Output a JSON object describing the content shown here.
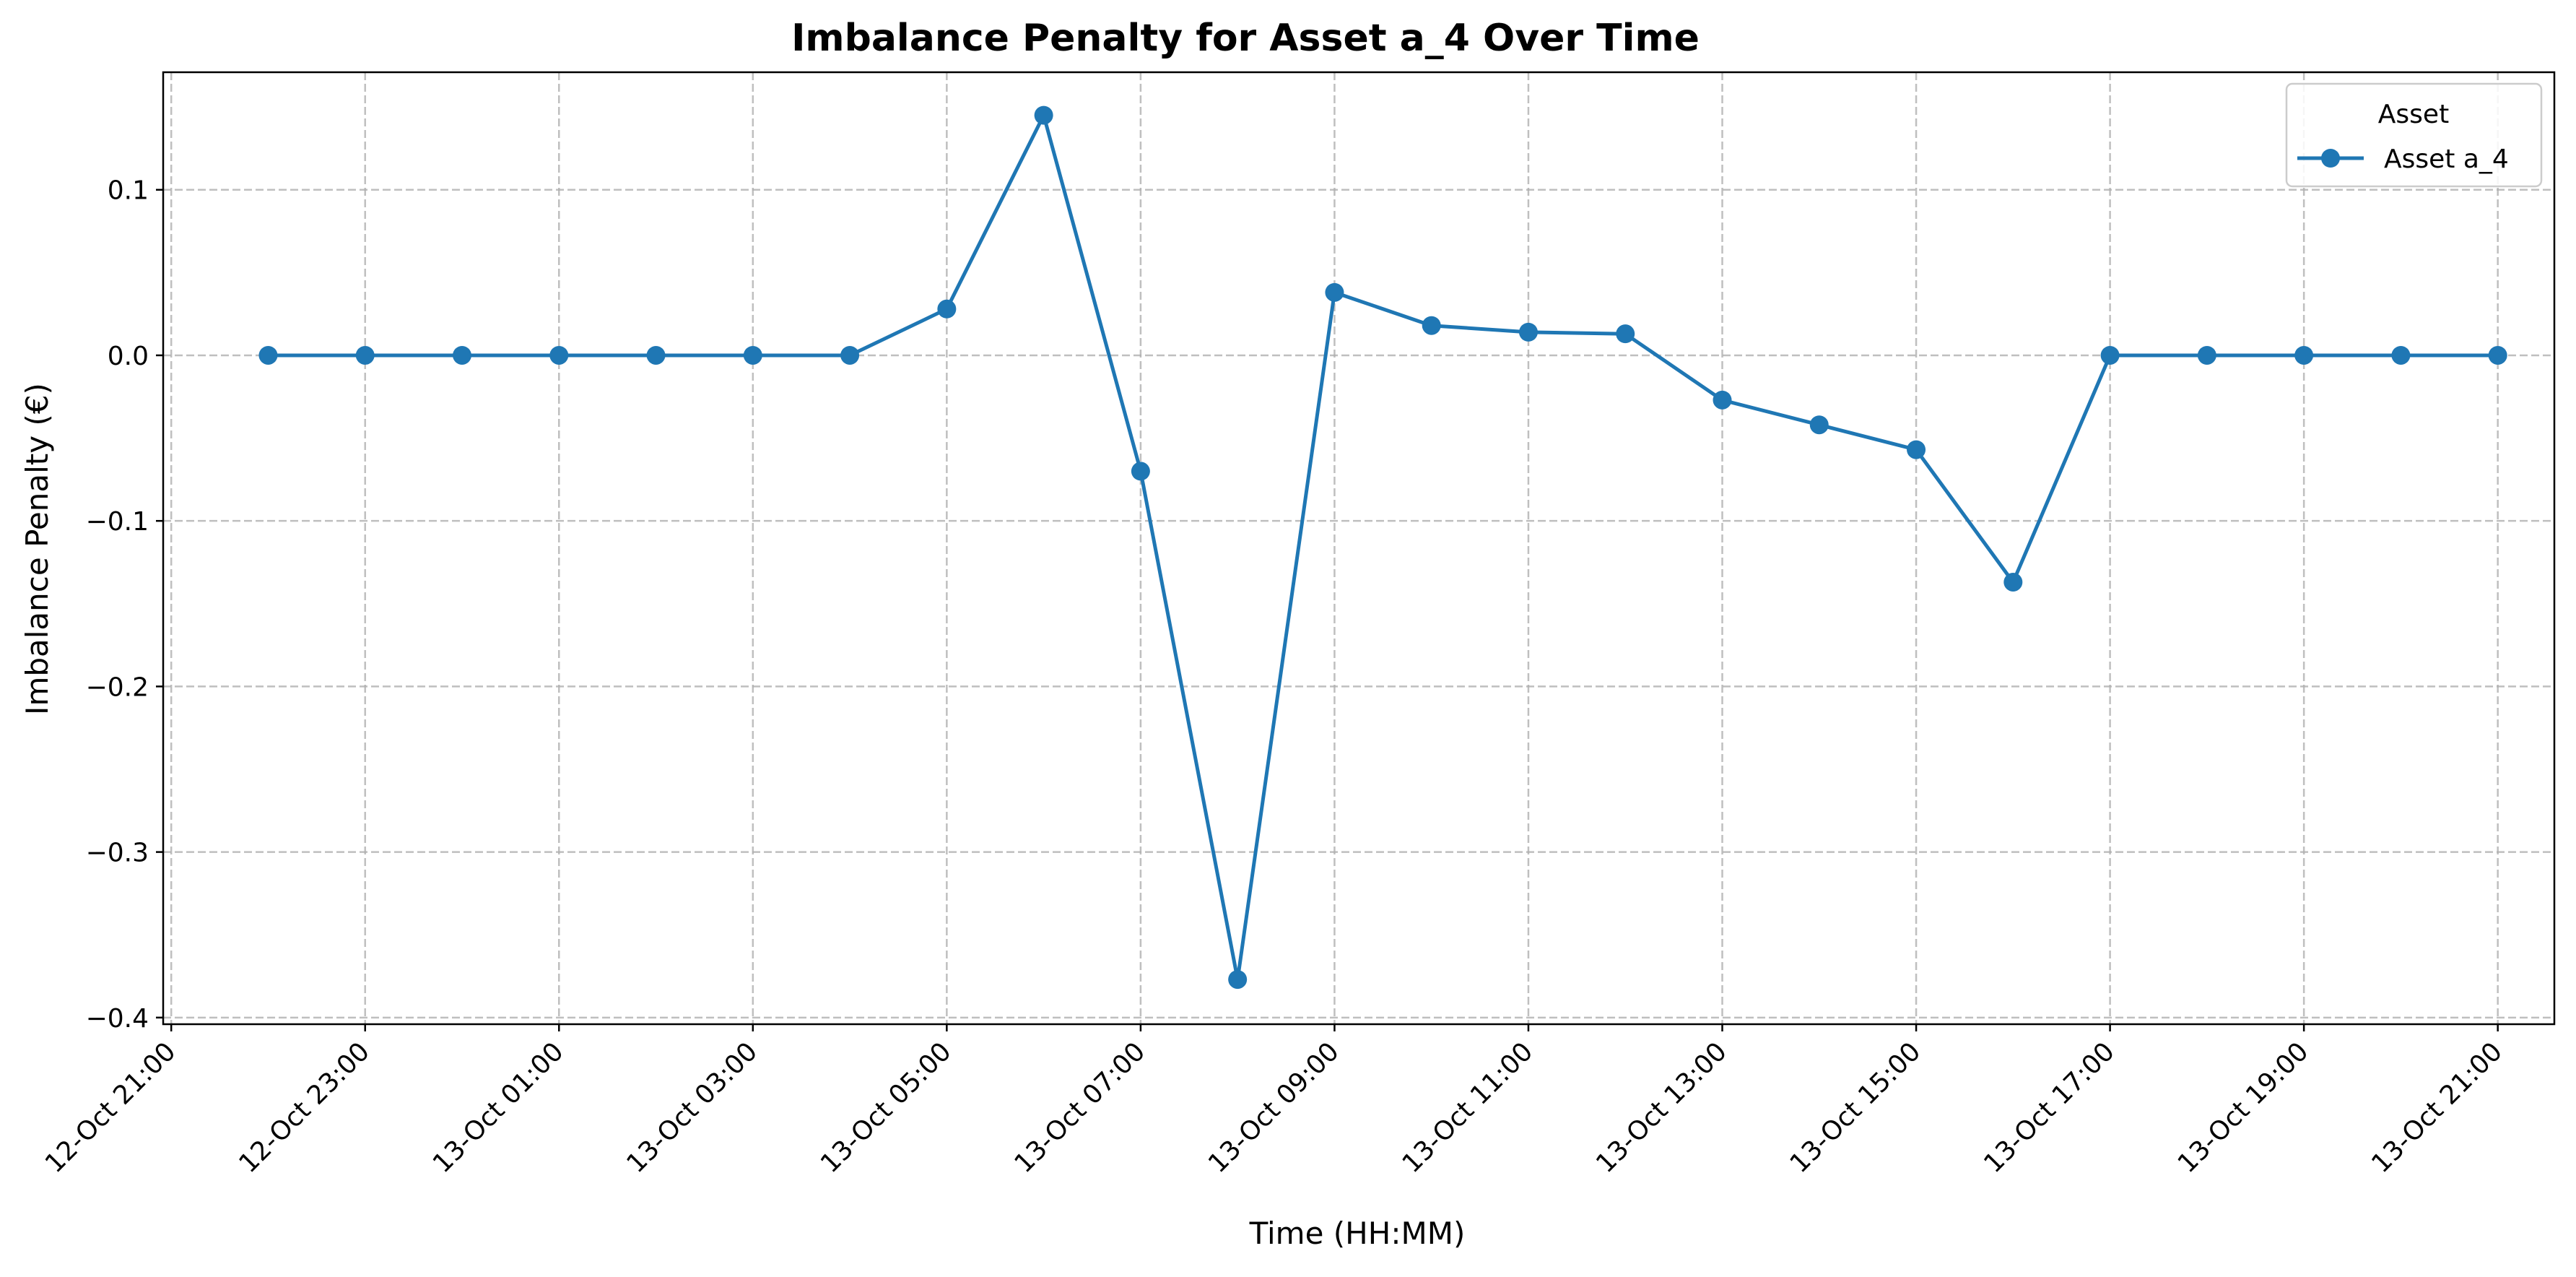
{
  "chart_data": {
    "type": "line",
    "title": "Imbalance Penalty for Asset a_4 Over Time",
    "xlabel": "Time (HH:MM)",
    "ylabel": "Imbalance Penalty (€)",
    "x_ticks": [
      {
        "x": "2023-10-12 21:00",
        "label": "12-Oct 21:00"
      },
      {
        "x": "2023-10-12 23:00",
        "label": "12-Oct 23:00"
      },
      {
        "x": "2023-10-13 01:00",
        "label": "13-Oct 01:00"
      },
      {
        "x": "2023-10-13 03:00",
        "label": "13-Oct 03:00"
      },
      {
        "x": "2023-10-13 05:00",
        "label": "13-Oct 05:00"
      },
      {
        "x": "2023-10-13 07:00",
        "label": "13-Oct 07:00"
      },
      {
        "x": "2023-10-13 09:00",
        "label": "13-Oct 09:00"
      },
      {
        "x": "2023-10-13 11:00",
        "label": "13-Oct 11:00"
      },
      {
        "x": "2023-10-13 13:00",
        "label": "13-Oct 13:00"
      },
      {
        "x": "2023-10-13 15:00",
        "label": "13-Oct 15:00"
      },
      {
        "x": "2023-10-13 17:00",
        "label": "13-Oct 17:00"
      },
      {
        "x": "2023-10-13 19:00",
        "label": "13-Oct 19:00"
      },
      {
        "x": "2023-10-13 21:00",
        "label": "13-Oct 21:00"
      }
    ],
    "y_ticks": [
      {
        "value": 0.1,
        "label": "0.1"
      },
      {
        "value": 0.0,
        "label": "0.0"
      },
      {
        "value": -0.1,
        "label": "−0.1"
      },
      {
        "value": -0.2,
        "label": "−0.2"
      },
      {
        "value": -0.3,
        "label": "−0.3"
      },
      {
        "value": -0.4,
        "label": "−0.4"
      }
    ],
    "xlim": [
      "2023-10-12 20:55",
      "2023-10-13 21:35"
    ],
    "ylim": [
      -0.404,
      0.171
    ],
    "grid": true,
    "legend": {
      "title": "Asset",
      "position": "top-right"
    },
    "series": [
      {
        "name": "Asset a_4",
        "color": "#1f77b4",
        "marker": "circle",
        "x": [
          "2023-10-12 22:00",
          "2023-10-12 23:00",
          "2023-10-13 00:00",
          "2023-10-13 01:00",
          "2023-10-13 02:00",
          "2023-10-13 03:00",
          "2023-10-13 04:00",
          "2023-10-13 05:00",
          "2023-10-13 06:00",
          "2023-10-13 07:00",
          "2023-10-13 08:00",
          "2023-10-13 09:00",
          "2023-10-13 10:00",
          "2023-10-13 11:00",
          "2023-10-13 12:00",
          "2023-10-13 13:00",
          "2023-10-13 14:00",
          "2023-10-13 15:00",
          "2023-10-13 16:00",
          "2023-10-13 17:00",
          "2023-10-13 18:00",
          "2023-10-13 19:00",
          "2023-10-13 20:00",
          "2023-10-13 21:00"
        ],
        "y": [
          0,
          0,
          0,
          0,
          0,
          0,
          0,
          0.028,
          0.145,
          -0.07,
          -0.377,
          0.038,
          0.018,
          0.014,
          0.013,
          -0.027,
          -0.042,
          -0.057,
          -0.137,
          0,
          0,
          0,
          0,
          0
        ]
      }
    ]
  }
}
